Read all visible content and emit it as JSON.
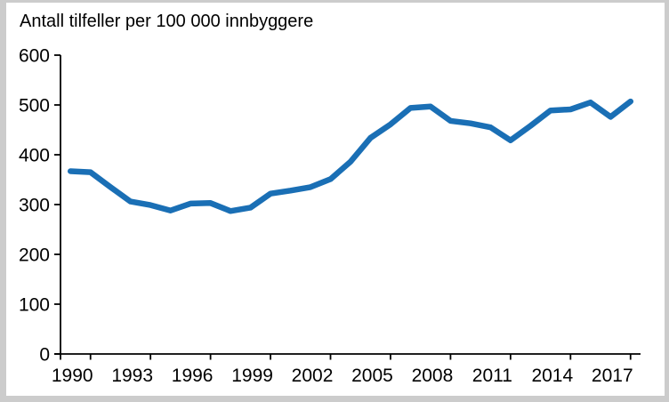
{
  "title": "Antall tilfeller per 100 000 innbyggere",
  "chart_data": {
    "type": "line",
    "title": "Antall tilfeller per 100 000 innbyggere",
    "x": [
      1990,
      1991,
      1992,
      1993,
      1994,
      1995,
      1996,
      1997,
      1998,
      1999,
      2000,
      2001,
      2002,
      2003,
      2004,
      2005,
      2006,
      2007,
      2008,
      2009,
      2010,
      2011,
      2012,
      2013,
      2014,
      2015,
      2016,
      2017,
      2018
    ],
    "series": [
      {
        "name": "Antall tilfeller per 100 000 innbyggere",
        "values": [
          367,
          365,
          335,
          306,
          299,
          288,
          302,
          303,
          287,
          294,
          322,
          328,
          335,
          351,
          386,
          434,
          461,
          494,
          497,
          468,
          463,
          455,
          429,
          458,
          489,
          491,
          505,
          476,
          507
        ]
      }
    ],
    "xlabel": "",
    "ylabel": "Antall tilfeller per 100 000 innbyggere",
    "ylim": [
      0,
      600
    ],
    "yticks": [
      0,
      100,
      200,
      300,
      400,
      500,
      600
    ],
    "xtick_labels": [
      1990,
      1993,
      1996,
      1999,
      2002,
      2005,
      2008,
      2011,
      2014,
      2017
    ],
    "grid": false,
    "legend_position": "none",
    "line_color": "#1a6fb5",
    "axis_color": "#000000"
  }
}
